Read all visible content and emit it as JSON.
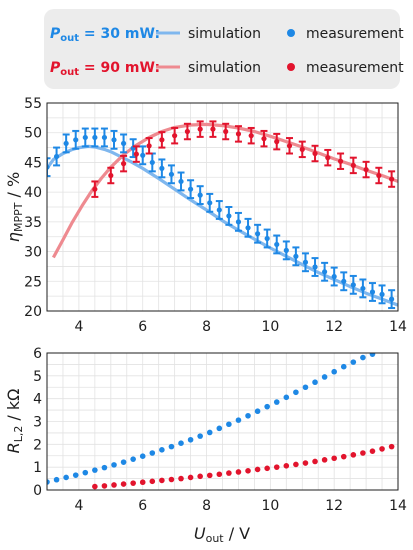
{
  "legend": {
    "rows": [
      {
        "symbol": "P",
        "subscript": "out",
        "condition": " = 30 mW:",
        "color": "#1e88e5",
        "sim_color": "#7fb7ee",
        "sim_label": "simulation",
        "meas_label": "measurement"
      },
      {
        "symbol": "P",
        "subscript": "out",
        "condition": " = 90 mW:",
        "color": "#e2142d",
        "sim_color": "#ee8a90",
        "sim_label": "simulation",
        "meas_label": "measurement"
      }
    ]
  },
  "axes": {
    "x_symbol": "U",
    "x_sub": "out",
    "x_unit": " / V",
    "top_y_symbol": "η",
    "top_y_sub": "MPPT",
    "top_y_unit": " / %",
    "bottom_y_symbol": "R",
    "bottom_y_sub": "L,2",
    "bottom_y_unit": " / kΩ"
  },
  "chart_data": [
    {
      "type": "line",
      "xlim": [
        3,
        14
      ],
      "ylim": [
        20,
        55
      ],
      "grid": true,
      "x_ticks": [
        4,
        6,
        8,
        10,
        12,
        14
      ],
      "x_tick_labels": [
        "4",
        "6",
        "8",
        "10",
        "12",
        "14"
      ],
      "y_ticks": [
        20,
        25,
        30,
        35,
        40,
        45,
        50,
        55
      ],
      "y_tick_labels": [
        "20",
        "25",
        "30",
        "35",
        "40",
        "45",
        "50",
        "55"
      ],
      "series": [
        {
          "label_ref": "30 mW simulation",
          "kind": "line",
          "x": [
            3.0,
            3.2,
            3.5,
            3.8,
            4.0,
            4.3,
            4.5,
            4.8,
            5.0,
            5.3,
            5.6,
            6.0,
            6.5,
            7.0,
            7.5,
            8.0,
            8.5,
            9.0,
            9.5,
            10.0,
            10.5,
            11.0,
            11.5,
            12.0,
            12.5,
            13.0,
            13.5,
            14.0
          ],
          "y": [
            44.0,
            45.5,
            46.5,
            47.2,
            47.5,
            47.7,
            47.6,
            47.2,
            46.8,
            46.0,
            45.2,
            44.0,
            42.3,
            40.5,
            38.7,
            37.0,
            35.2,
            33.6,
            32.1,
            30.6,
            29.2,
            27.8,
            26.5,
            25.3,
            24.1,
            23.0,
            22.0,
            21.0
          ]
        },
        {
          "label_ref": "30 mW measurement",
          "kind": "points_err",
          "x": [
            3.0,
            3.3,
            3.6,
            3.9,
            4.2,
            4.5,
            4.8,
            5.1,
            5.4,
            5.7,
            6.0,
            6.3,
            6.6,
            6.9,
            7.2,
            7.5,
            7.8,
            8.1,
            8.4,
            8.7,
            9.0,
            9.3,
            9.6,
            9.9,
            10.2,
            10.5,
            10.8,
            11.1,
            11.4,
            11.7,
            12.0,
            12.3,
            12.6,
            12.9,
            13.2,
            13.5,
            13.8
          ],
          "y": [
            44.2,
            46.0,
            48.2,
            48.8,
            49.2,
            49.2,
            49.2,
            48.8,
            48.2,
            47.4,
            46.2,
            45.0,
            44.0,
            43.0,
            41.8,
            40.5,
            39.5,
            38.2,
            37.0,
            36.0,
            35.0,
            34.0,
            33.0,
            32.2,
            31.2,
            30.2,
            29.2,
            28.2,
            27.4,
            26.6,
            25.8,
            25.0,
            24.4,
            23.8,
            23.2,
            22.8,
            22.0
          ],
          "err": 1.5
        },
        {
          "label_ref": "90 mW simulation",
          "kind": "line",
          "x": [
            3.2,
            3.5,
            3.8,
            4.1,
            4.4,
            4.7,
            5.0,
            5.4,
            5.8,
            6.2,
            6.6,
            7.0,
            7.5,
            8.0,
            8.5,
            9.0,
            9.5,
            10.0,
            10.5,
            11.0,
            11.5,
            12.0,
            12.5,
            13.0,
            13.5,
            14.0
          ],
          "y": [
            29.0,
            32.0,
            35.0,
            37.7,
            40.2,
            42.3,
            44.2,
            46.3,
            47.9,
            49.2,
            50.2,
            50.9,
            51.3,
            51.4,
            51.2,
            50.8,
            50.2,
            49.4,
            48.5,
            47.6,
            46.6,
            45.6,
            44.7,
            43.7,
            42.8,
            41.8
          ]
        },
        {
          "label_ref": "90 mW measurement",
          "kind": "points_err",
          "x": [
            4.5,
            5.0,
            5.4,
            5.8,
            6.2,
            6.6,
            7.0,
            7.4,
            7.8,
            8.2,
            8.6,
            9.0,
            9.4,
            9.8,
            10.2,
            10.6,
            11.0,
            11.4,
            11.8,
            12.2,
            12.6,
            13.0,
            13.4,
            13.8
          ],
          "y": [
            40.5,
            42.8,
            44.8,
            46.4,
            47.8,
            48.8,
            49.5,
            50.2,
            50.6,
            50.6,
            50.2,
            49.8,
            49.5,
            49.0,
            48.5,
            47.8,
            47.2,
            46.5,
            45.8,
            45.2,
            44.5,
            43.8,
            42.8,
            42.2
          ],
          "err": 1.3
        }
      ]
    },
    {
      "type": "scatter",
      "xlim": [
        3,
        14
      ],
      "ylim": [
        0,
        6
      ],
      "grid": true,
      "x_ticks": [
        4,
        6,
        8,
        10,
        12,
        14
      ],
      "x_tick_labels": [
        "4",
        "6",
        "8",
        "10",
        "12",
        "14"
      ],
      "y_ticks": [
        0,
        1,
        2,
        3,
        4,
        5,
        6
      ],
      "y_tick_labels": [
        "0",
        "1",
        "2",
        "3",
        "4",
        "5",
        "6"
      ],
      "series": [
        {
          "label_ref": "30 mW measurement",
          "x": [
            3.0,
            3.3,
            3.6,
            3.9,
            4.2,
            4.5,
            4.8,
            5.1,
            5.4,
            5.7,
            6.0,
            6.3,
            6.6,
            6.9,
            7.2,
            7.5,
            7.8,
            8.1,
            8.4,
            8.7,
            9.0,
            9.3,
            9.6,
            9.9,
            10.2,
            10.5,
            10.8,
            11.1,
            11.4,
            11.7,
            12.0,
            12.3,
            12.6,
            12.9,
            13.2
          ],
          "y": [
            0.35,
            0.45,
            0.55,
            0.65,
            0.76,
            0.87,
            0.98,
            1.1,
            1.22,
            1.35,
            1.48,
            1.62,
            1.76,
            1.9,
            2.05,
            2.2,
            2.36,
            2.52,
            2.7,
            2.88,
            3.06,
            3.25,
            3.45,
            3.65,
            3.85,
            4.06,
            4.28,
            4.5,
            4.72,
            4.95,
            5.18,
            5.4,
            5.6,
            5.8,
            5.95
          ]
        },
        {
          "label_ref": "90 mW measurement",
          "x": [
            4.5,
            4.8,
            5.1,
            5.4,
            5.7,
            6.0,
            6.3,
            6.6,
            6.9,
            7.2,
            7.5,
            7.8,
            8.1,
            8.4,
            8.7,
            9.0,
            9.3,
            9.6,
            9.9,
            10.2,
            10.5,
            10.8,
            11.1,
            11.4,
            11.7,
            12.0,
            12.3,
            12.6,
            12.9,
            13.2,
            13.5,
            13.8
          ],
          "y": [
            0.15,
            0.18,
            0.22,
            0.26,
            0.3,
            0.34,
            0.38,
            0.42,
            0.46,
            0.5,
            0.55,
            0.6,
            0.64,
            0.69,
            0.74,
            0.79,
            0.84,
            0.9,
            0.95,
            1.0,
            1.06,
            1.12,
            1.18,
            1.25,
            1.32,
            1.39,
            1.46,
            1.54,
            1.62,
            1.7,
            1.8,
            1.9
          ]
        }
      ]
    }
  ]
}
